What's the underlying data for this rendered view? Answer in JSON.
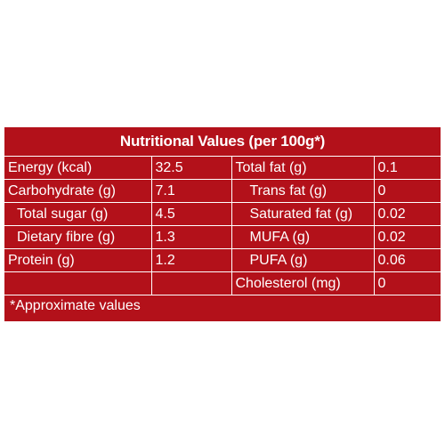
{
  "title": "Nutritional Values (per 100g*)",
  "rows": [
    {
      "left_label": "Energy (kcal)",
      "left_value": "32.5",
      "right_label": "Total fat (g)",
      "right_value": "0.1"
    },
    {
      "left_label": "Carbohydrate (g)",
      "left_value": "7.1",
      "right_label": "Trans fat (g)",
      "right_value": "0"
    },
    {
      "left_label": "Total sugar (g)",
      "left_value": "4.5",
      "right_label": "Saturated fat (g)",
      "right_value": "0.02"
    },
    {
      "left_label": "Dietary fibre (g)",
      "left_value": "1.3",
      "right_label": "MUFA (g)",
      "right_value": "0.02"
    },
    {
      "left_label": "Protein (g)",
      "left_value": "1.2",
      "right_label": "PUFA (g)",
      "right_value": "0.06"
    },
    {
      "left_label": "",
      "left_value": "",
      "right_label": "Cholesterol (mg)",
      "right_value": "0"
    }
  ],
  "footnote": "*Approximate values",
  "colors": {
    "panel": "#b3111a",
    "text": "#ffffff",
    "background": "#ffffff"
  }
}
